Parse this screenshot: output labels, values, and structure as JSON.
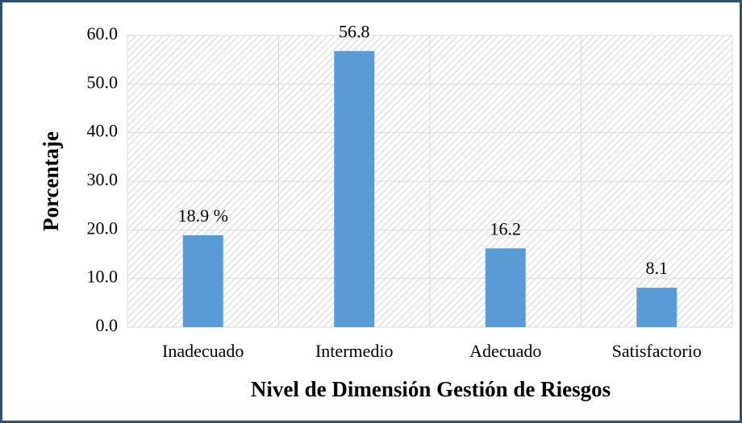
{
  "chart_data": {
    "type": "bar",
    "categories": [
      "Inadecuado",
      "Intermedio",
      "Adecuado",
      "Satisfactorio"
    ],
    "values": [
      18.9,
      56.8,
      16.2,
      8.1
    ],
    "value_labels": [
      "18.9 %",
      "56.8",
      "16.2",
      "8.1"
    ],
    "color": "#5b9bd5",
    "xlabel": "Nivel de Dimensión Gestión de Riesgos",
    "ylabel": "Porcentaje",
    "ylim": [
      0,
      60
    ],
    "yticks": [
      {
        "value": 0,
        "label": "0.0"
      },
      {
        "value": 10,
        "label": "10.0"
      },
      {
        "value": 20,
        "label": "20.0"
      },
      {
        "value": 30,
        "label": "30.0"
      },
      {
        "value": 40,
        "label": "40.0"
      },
      {
        "value": 50,
        "label": "50.0"
      },
      {
        "value": 60,
        "label": "60.0"
      }
    ],
    "grid": true
  }
}
